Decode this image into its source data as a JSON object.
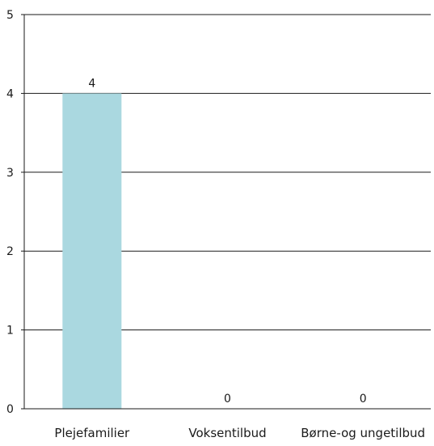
{
  "chart_data": {
    "type": "bar",
    "categories": [
      "Plejefamilier",
      "Voksentilbud",
      "Børne-og ungetilbud"
    ],
    "values": [
      4,
      0,
      0
    ],
    "data_labels": [
      "4",
      "0",
      "0"
    ],
    "ylim": [
      0,
      5
    ],
    "yticks": [
      "0",
      "1",
      "2",
      "3",
      "4",
      "5"
    ],
    "grid": true,
    "legend": "none",
    "colors": {
      "bar": "#aad8e0",
      "grid": "#1a1a1a",
      "axis": "#1a1a1a",
      "text": "#1a1a1a"
    }
  }
}
